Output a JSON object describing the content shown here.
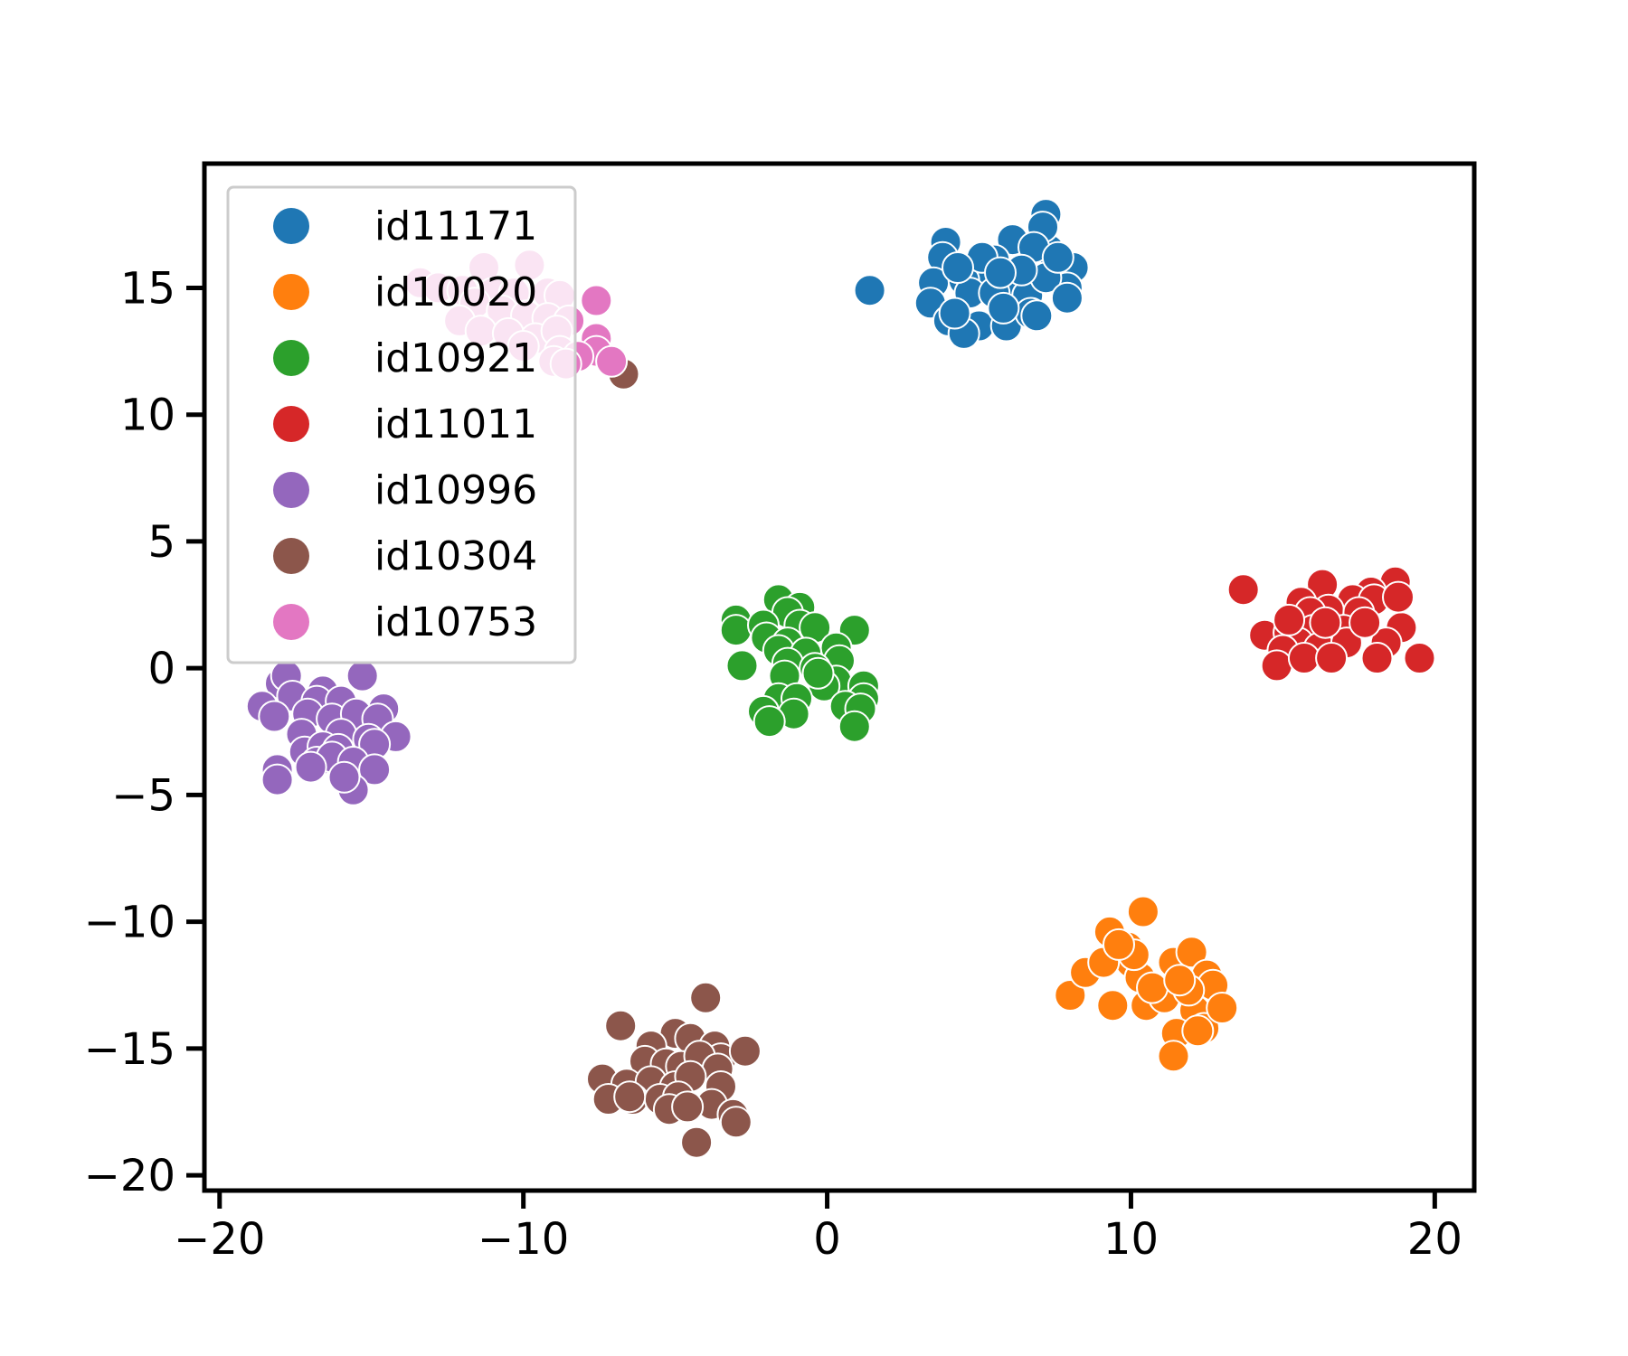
{
  "chart_data": {
    "type": "scatter",
    "title": "",
    "xlabel": "",
    "ylabel": "",
    "xlim": [
      -20.5,
      21.3
    ],
    "ylim": [
      -20.6,
      19.9
    ],
    "xticks": [
      -20,
      -10,
      0,
      10,
      20
    ],
    "yticks": [
      -20,
      -15,
      -10,
      -5,
      0,
      5,
      10,
      15
    ],
    "xtick_labels": [
      "−20",
      "−10",
      "0",
      "10",
      "20"
    ],
    "ytick_labels": [
      "−20",
      "−15",
      "−10",
      "−5",
      "0",
      "5",
      "10",
      "15"
    ],
    "grid": false,
    "legend_position": "top-left",
    "series": [
      {
        "name": "id11171",
        "color": "#1f77b4",
        "points": [
          [
            3.9,
            16.8
          ],
          [
            7.2,
            17.9
          ],
          [
            3.8,
            16.2
          ],
          [
            6.1,
            16.9
          ],
          [
            5.5,
            16.1
          ],
          [
            4.9,
            15.5
          ],
          [
            5.2,
            15.3
          ],
          [
            6.2,
            15.2
          ],
          [
            7.3,
            16.5
          ],
          [
            8.1,
            15.8
          ],
          [
            7.9,
            15.0
          ],
          [
            3.5,
            15.2
          ],
          [
            4.5,
            15.3
          ],
          [
            4.7,
            14.8
          ],
          [
            5.5,
            14.8
          ],
          [
            6.6,
            14.7
          ],
          [
            7.2,
            15.4
          ],
          [
            3.4,
            14.4
          ],
          [
            4.0,
            13.7
          ],
          [
            5.0,
            13.5
          ],
          [
            5.9,
            13.5
          ],
          [
            6.7,
            14.0
          ],
          [
            7.9,
            14.6
          ],
          [
            4.5,
            13.2
          ],
          [
            5.8,
            14.2
          ],
          [
            7.1,
            17.4
          ],
          [
            1.4,
            14.9
          ],
          [
            6.8,
            16.6
          ],
          [
            5.1,
            16.2
          ],
          [
            4.3,
            15.8
          ],
          [
            6.4,
            15.7
          ],
          [
            5.7,
            15.6
          ],
          [
            6.9,
            13.9
          ],
          [
            4.2,
            14.0
          ],
          [
            7.6,
            16.2
          ]
        ]
      },
      {
        "name": "id10020",
        "color": "#ff7f0e",
        "points": [
          [
            8.0,
            -12.9
          ],
          [
            8.5,
            -12.0
          ],
          [
            9.3,
            -10.4
          ],
          [
            10.4,
            -9.6
          ],
          [
            9.9,
            -11.0
          ],
          [
            10.0,
            -11.6
          ],
          [
            9.1,
            -11.6
          ],
          [
            10.3,
            -12.2
          ],
          [
            9.4,
            -13.3
          ],
          [
            10.5,
            -13.3
          ],
          [
            11.1,
            -13.0
          ],
          [
            11.4,
            -11.6
          ],
          [
            12.0,
            -11.2
          ],
          [
            12.5,
            -12.1
          ],
          [
            12.7,
            -12.5
          ],
          [
            12.1,
            -13.5
          ],
          [
            12.4,
            -14.2
          ],
          [
            13.0,
            -13.4
          ],
          [
            11.5,
            -14.4
          ],
          [
            12.2,
            -14.3
          ],
          [
            11.4,
            -15.3
          ],
          [
            10.7,
            -12.6
          ],
          [
            11.9,
            -12.7
          ],
          [
            10.1,
            -11.3
          ],
          [
            11.6,
            -12.3
          ],
          [
            9.6,
            -10.9
          ]
        ]
      },
      {
        "name": "id10921",
        "color": "#2ca02c",
        "points": [
          [
            -3.0,
            1.9
          ],
          [
            -3.0,
            1.5
          ],
          [
            -1.6,
            2.7
          ],
          [
            -0.9,
            2.4
          ],
          [
            -1.3,
            2.2
          ],
          [
            -2.1,
            1.7
          ],
          [
            -0.9,
            1.7
          ],
          [
            -0.4,
            1.6
          ],
          [
            0.9,
            1.5
          ],
          [
            -2.0,
            1.2
          ],
          [
            -1.3,
            1.0
          ],
          [
            0.3,
            0.8
          ],
          [
            -1.6,
            0.7
          ],
          [
            -0.7,
            0.6
          ],
          [
            -1.3,
            0.2
          ],
          [
            0.4,
            0.3
          ],
          [
            -2.8,
            0.1
          ],
          [
            -0.4,
            0.0
          ],
          [
            -1.4,
            -0.3
          ],
          [
            0.3,
            -0.5
          ],
          [
            -0.1,
            -0.7
          ],
          [
            -1.6,
            -1.2
          ],
          [
            1.2,
            -0.7
          ],
          [
            -1.0,
            -1.2
          ],
          [
            1.2,
            -1.2
          ],
          [
            0.6,
            -1.5
          ],
          [
            -2.1,
            -1.7
          ],
          [
            -1.1,
            -1.8
          ],
          [
            1.1,
            -1.6
          ],
          [
            0.9,
            -2.3
          ],
          [
            -1.9,
            -2.1
          ],
          [
            -0.3,
            -0.2
          ]
        ]
      },
      {
        "name": "id11011",
        "color": "#d62728",
        "points": [
          [
            13.7,
            3.1
          ],
          [
            16.3,
            3.3
          ],
          [
            18.7,
            3.4
          ],
          [
            17.9,
            3.0
          ],
          [
            15.6,
            2.6
          ],
          [
            17.3,
            2.7
          ],
          [
            16.5,
            2.3
          ],
          [
            15.9,
            2.2
          ],
          [
            18.0,
            2.7
          ],
          [
            17.5,
            2.2
          ],
          [
            14.4,
            1.3
          ],
          [
            15.2,
            1.4
          ],
          [
            16.0,
            1.5
          ],
          [
            17.0,
            1.5
          ],
          [
            18.9,
            1.6
          ],
          [
            15.5,
            1.0
          ],
          [
            16.2,
            0.8
          ],
          [
            17.1,
            1.0
          ],
          [
            18.4,
            1.0
          ],
          [
            15.0,
            0.7
          ],
          [
            14.8,
            0.1
          ],
          [
            15.7,
            0.4
          ],
          [
            16.6,
            0.4
          ],
          [
            18.1,
            0.4
          ],
          [
            19.5,
            0.4
          ],
          [
            16.4,
            1.8
          ],
          [
            17.7,
            1.8
          ],
          [
            15.2,
            1.9
          ],
          [
            18.8,
            2.8
          ]
        ]
      },
      {
        "name": "id10996",
        "color": "#9467bd",
        "points": [
          [
            -18.0,
            -0.6
          ],
          [
            -17.8,
            -0.3
          ],
          [
            -16.6,
            -0.9
          ],
          [
            -15.3,
            -0.3
          ],
          [
            -17.6,
            -1.1
          ],
          [
            -16.8,
            -1.3
          ],
          [
            -16.0,
            -1.3
          ],
          [
            -14.6,
            -1.6
          ],
          [
            -18.6,
            -1.5
          ],
          [
            -18.2,
            -1.9
          ],
          [
            -17.1,
            -1.8
          ],
          [
            -16.3,
            -2.0
          ],
          [
            -15.5,
            -1.8
          ],
          [
            -14.8,
            -2.0
          ],
          [
            -17.3,
            -2.6
          ],
          [
            -16.0,
            -2.6
          ],
          [
            -15.1,
            -2.8
          ],
          [
            -14.2,
            -2.7
          ],
          [
            -17.2,
            -3.3
          ],
          [
            -16.6,
            -3.1
          ],
          [
            -16.1,
            -3.2
          ],
          [
            -14.9,
            -3.0
          ],
          [
            -16.8,
            -3.7
          ],
          [
            -16.3,
            -3.5
          ],
          [
            -15.6,
            -3.7
          ],
          [
            -18.1,
            -4.0
          ],
          [
            -17.0,
            -3.9
          ],
          [
            -14.9,
            -4.0
          ],
          [
            -18.1,
            -4.4
          ],
          [
            -15.6,
            -4.8
          ],
          [
            -15.9,
            -4.3
          ]
        ]
      },
      {
        "name": "id10304",
        "color": "#8c564b",
        "points": [
          [
            -4.0,
            -13.0
          ],
          [
            -6.8,
            -14.1
          ],
          [
            -5.0,
            -14.4
          ],
          [
            -4.5,
            -14.6
          ],
          [
            -5.8,
            -14.9
          ],
          [
            -3.7,
            -14.9
          ],
          [
            -3.5,
            -15.4
          ],
          [
            -2.7,
            -15.1
          ],
          [
            -6.0,
            -15.5
          ],
          [
            -5.3,
            -15.6
          ],
          [
            -4.8,
            -15.7
          ],
          [
            -4.2,
            -15.3
          ],
          [
            -3.6,
            -15.8
          ],
          [
            -7.4,
            -16.2
          ],
          [
            -6.6,
            -16.4
          ],
          [
            -5.8,
            -16.3
          ],
          [
            -5.0,
            -16.5
          ],
          [
            -4.5,
            -16.1
          ],
          [
            -3.5,
            -16.5
          ],
          [
            -6.4,
            -17.0
          ],
          [
            -5.5,
            -17.0
          ],
          [
            -4.9,
            -16.9
          ],
          [
            -3.8,
            -17.2
          ],
          [
            -7.2,
            -17.0
          ],
          [
            -6.5,
            -16.9
          ],
          [
            -5.2,
            -17.4
          ],
          [
            -4.6,
            -17.3
          ],
          [
            -3.1,
            -17.6
          ],
          [
            -3.0,
            -17.9
          ],
          [
            -4.3,
            -18.7
          ],
          [
            -6.7,
            11.6
          ]
        ]
      },
      {
        "name": "id10753",
        "color": "#e377c2",
        "points": [
          [
            -11.3,
            15.8
          ],
          [
            -9.8,
            15.9
          ],
          [
            -13.4,
            15.2
          ],
          [
            -12.8,
            15.0
          ],
          [
            -12.0,
            14.9
          ],
          [
            -11.0,
            14.8
          ],
          [
            -10.3,
            14.8
          ],
          [
            -9.2,
            14.8
          ],
          [
            -8.8,
            14.7
          ],
          [
            -7.6,
            14.5
          ],
          [
            -11.6,
            14.4
          ],
          [
            -10.7,
            14.1
          ],
          [
            -9.9,
            13.9
          ],
          [
            -9.2,
            13.8
          ],
          [
            -8.5,
            13.7
          ],
          [
            -12.1,
            13.7
          ],
          [
            -11.4,
            13.3
          ],
          [
            -10.5,
            13.2
          ],
          [
            -9.6,
            13.0
          ],
          [
            -8.9,
            13.3
          ],
          [
            -7.6,
            13.0
          ],
          [
            -10.0,
            12.7
          ],
          [
            -8.8,
            12.5
          ],
          [
            -7.6,
            12.5
          ],
          [
            -7.1,
            12.1
          ],
          [
            -8.2,
            12.3
          ],
          [
            -9.0,
            12.1
          ],
          [
            -8.6,
            12.0
          ]
        ]
      }
    ]
  }
}
